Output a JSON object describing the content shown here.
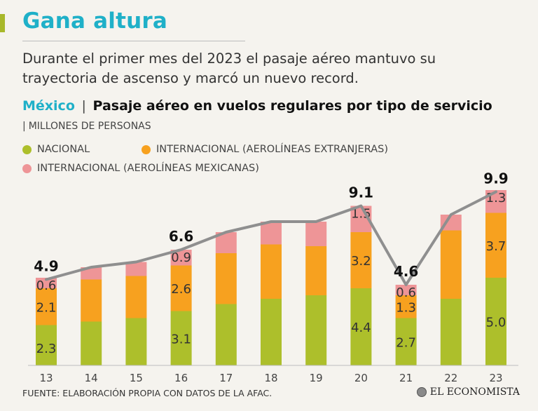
{
  "header": {
    "title": "Gana altura",
    "subtitle": "Durante el primer mes del 2023 el pasaje aéreo mantuvo su trayectoria de ascenso y marcó un nuevo record.",
    "country": "México",
    "separator": "|",
    "chart_title": "Pasaje aéreo en vuelos regulares por tipo de servicio",
    "units": "MILLONES DE PERSONAS"
  },
  "legend": [
    {
      "label": "NACIONAL",
      "color": "#adbf2b"
    },
    {
      "label": "INTERNACIONAL (AEROLÍNEAS EXTRANJERAS)",
      "color": "#f7a11f"
    },
    {
      "label": "INTERNACIONAL (AEROLÍNEAS MEXICANAS)",
      "color": "#ee9597"
    }
  ],
  "footer": {
    "source": "FUENTE: ELABORACIÓN PROPIA CON DATOS DE LA AFAC.",
    "brand": "EL ECONOMISTA"
  },
  "chart_data": {
    "type": "bar",
    "stacked": true,
    "categories": [
      "13",
      "14",
      "15",
      "16",
      "17",
      "18",
      "19",
      "20",
      "21",
      "22",
      "23"
    ],
    "series": [
      {
        "name": "NACIONAL",
        "color": "#adbf2b",
        "values": [
          2.3,
          2.5,
          2.7,
          3.1,
          3.5,
          3.8,
          4.0,
          4.4,
          2.7,
          3.8,
          5.0
        ],
        "labels": [
          "2.3",
          null,
          null,
          "3.1",
          null,
          null,
          null,
          "4.4",
          "2.7",
          null,
          "5.0"
        ]
      },
      {
        "name": "INTERNACIONAL (AEROLÍNEAS EXTRANJERAS)",
        "color": "#f7a11f",
        "values": [
          2.1,
          2.4,
          2.4,
          2.6,
          2.9,
          3.1,
          2.8,
          3.2,
          1.3,
          3.9,
          3.7
        ],
        "labels": [
          "2.1",
          null,
          null,
          "2.6",
          null,
          null,
          null,
          "3.2",
          "1.3",
          null,
          "3.7"
        ]
      },
      {
        "name": "INTERNACIONAL (AEROLÍNEAS MEXICANAS)",
        "color": "#ee9597",
        "values": [
          0.6,
          0.7,
          0.8,
          0.9,
          1.2,
          1.3,
          1.4,
          1.5,
          0.6,
          0.9,
          1.3
        ],
        "labels": [
          "0.6",
          null,
          null,
          "0.9",
          null,
          null,
          null,
          "1.5",
          "0.6",
          null,
          "1.3"
        ]
      }
    ],
    "totals": [
      4.9,
      5.6,
      5.9,
      6.6,
      7.6,
      8.2,
      8.2,
      9.1,
      4.6,
      8.6,
      9.9
    ],
    "total_labels": [
      "4.9",
      null,
      null,
      "6.6",
      null,
      null,
      null,
      "9.1",
      "4.6",
      null,
      "9.9"
    ],
    "line_color": "#8f8f8f",
    "ylim": [
      0,
      10.2
    ],
    "grid": false
  }
}
